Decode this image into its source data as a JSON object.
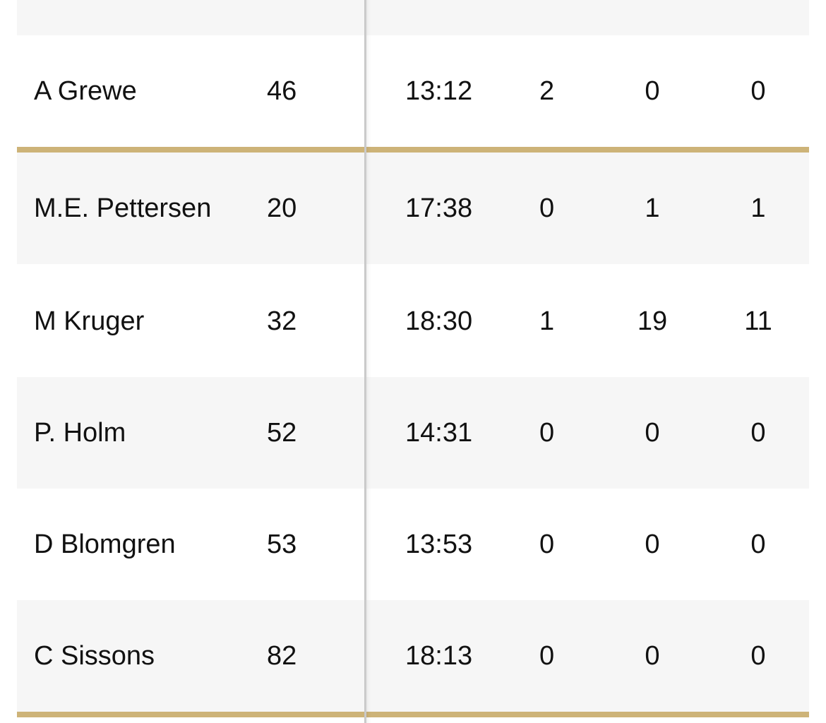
{
  "rows": [
    {
      "name": "A Grewe",
      "number": "46",
      "time": "13:12",
      "c4": "2",
      "c5": "0",
      "c6": "0"
    },
    {
      "name": "M.E. Pettersen",
      "number": "20",
      "time": "17:38",
      "c4": "0",
      "c5": "1",
      "c6": "1"
    },
    {
      "name": "M Kruger",
      "number": "32",
      "time": "18:30",
      "c4": "1",
      "c5": "19",
      "c6": "11"
    },
    {
      "name": "P. Holm",
      "number": "52",
      "time": "14:31",
      "c4": "0",
      "c5": "0",
      "c6": "0"
    },
    {
      "name": "D Blomgren",
      "number": "53",
      "time": "13:53",
      "c4": "0",
      "c5": "0",
      "c6": "0"
    },
    {
      "name": "C Sissons",
      "number": "82",
      "time": "18:13",
      "c4": "0",
      "c5": "0",
      "c6": "0"
    }
  ],
  "colors": {
    "divider": "#cdb378",
    "row_alt": "#f6f6f6",
    "row_white": "#ffffff",
    "text": "#111111"
  }
}
